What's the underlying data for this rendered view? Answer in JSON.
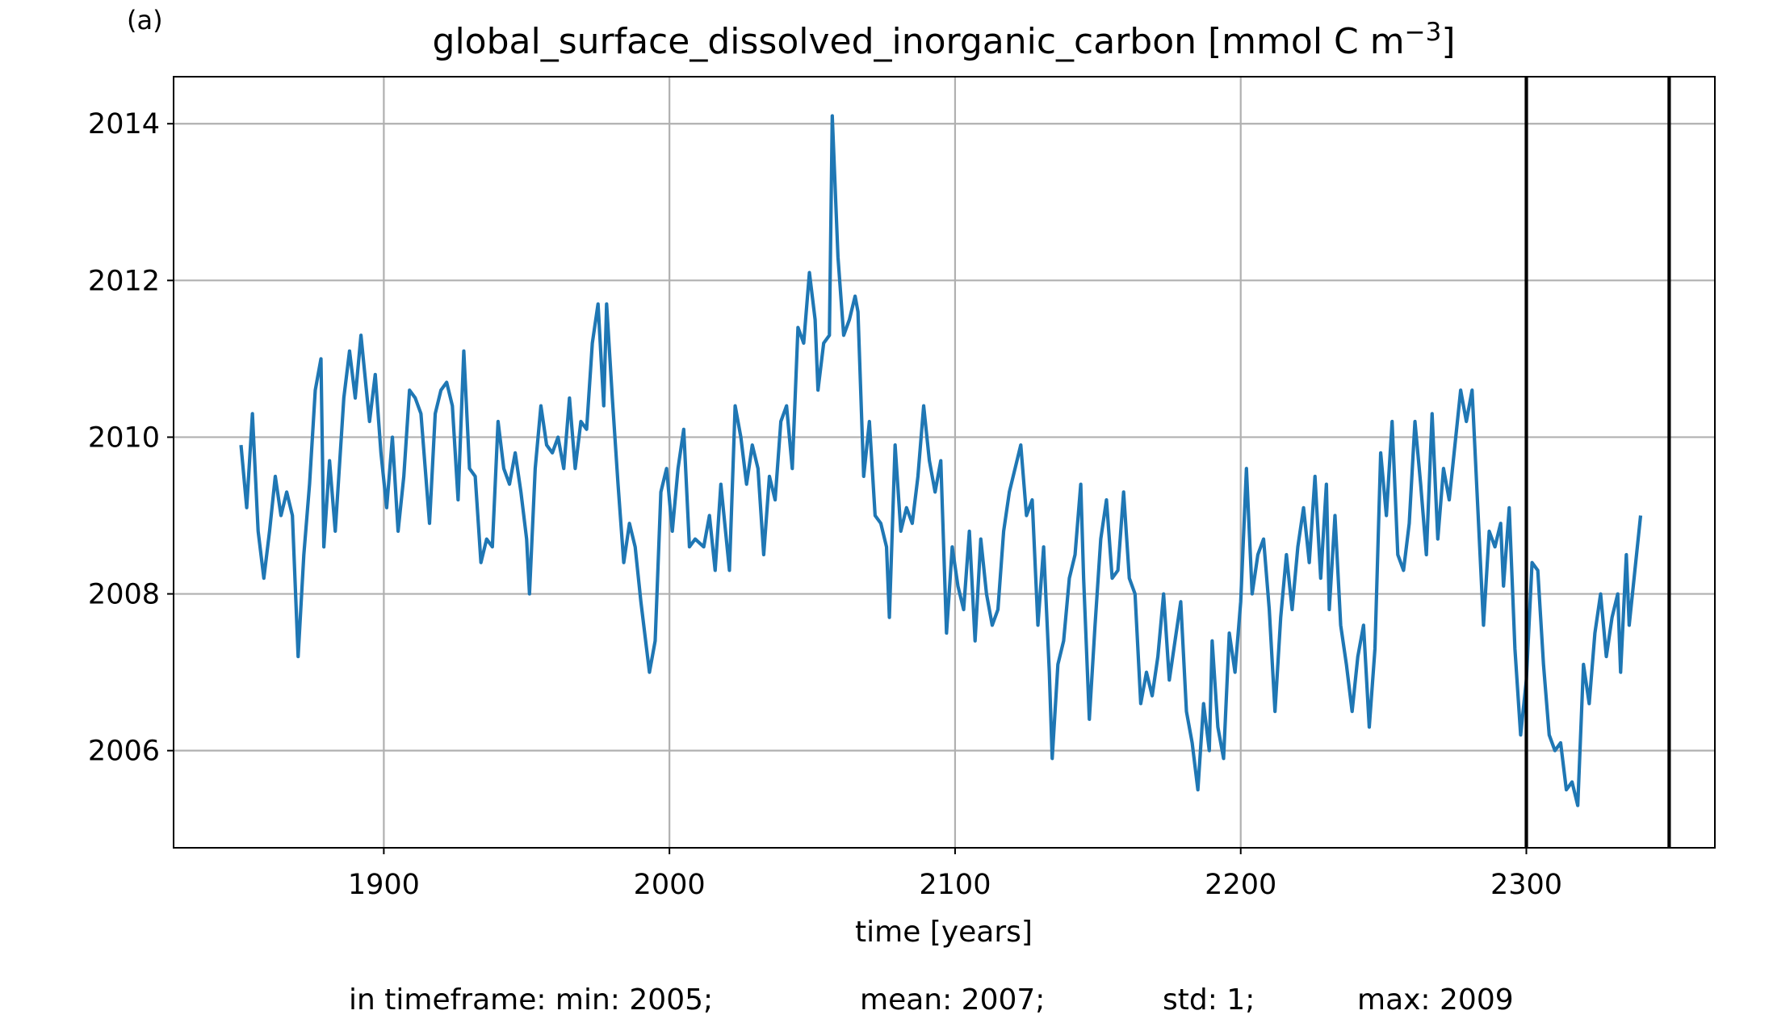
{
  "chart_data": {
    "type": "line",
    "panel_label": "(a)",
    "title": "global_surface_dissolved_inorganic_carbon [mmol C m",
    "title_sup": "−3",
    "title_end": "]",
    "xlabel": "time [years]",
    "stats": [
      "in timeframe: min: 2005;",
      "mean: 2007;",
      "std: 1;",
      "max: 2009"
    ],
    "xlim": [
      1826.4,
      2366
    ],
    "ylim": [
      2004.76,
      2014.6
    ],
    "xticks": [
      1900,
      2000,
      2100,
      2200,
      2300
    ],
    "yticks": [
      2006,
      2008,
      2010,
      2012,
      2014
    ],
    "grid": true,
    "vlines": [
      2300,
      2350
    ],
    "vline_color": "#000000",
    "series": [
      {
        "color": "#1f77b4",
        "x": [
          1850,
          1852,
          1854,
          1856,
          1858,
          1860,
          1862,
          1864,
          1866,
          1868,
          1870,
          1872,
          1874,
          1876,
          1878,
          1879,
          1881,
          1883,
          1886,
          1888,
          1890,
          1892,
          1895,
          1897,
          1899,
          1901,
          1903,
          1905,
          1907,
          1909,
          1911,
          1913,
          1916,
          1918,
          1920,
          1922,
          1924,
          1926,
          1928,
          1930,
          1932,
          1934,
          1936,
          1938,
          1940,
          1942,
          1944,
          1946,
          1948,
          1950,
          1951,
          1953,
          1955,
          1957,
          1959,
          1961,
          1963,
          1965,
          1967,
          1969,
          1971,
          1973,
          1975,
          1977,
          1978,
          1980,
          1982,
          1984,
          1986,
          1988,
          1990,
          1992,
          1993,
          1995,
          1997,
          1999,
          2001,
          2003,
          2005,
          2007,
          2009,
          2012,
          2014,
          2016,
          2018,
          2021,
          2023,
          2025,
          2027,
          2029,
          2031,
          2033,
          2035,
          2037,
          2039,
          2041,
          2043,
          2045,
          2047,
          2049,
          2051,
          2052,
          2054,
          2056,
          2057,
          2059,
          2061,
          2063,
          2065,
          2066,
          2068,
          2070,
          2072,
          2074,
          2076,
          2077,
          2079,
          2081,
          2083,
          2085,
          2087,
          2089,
          2091,
          2093,
          2095,
          2097,
          2099,
          2101,
          2103,
          2105,
          2107,
          2109,
          2111,
          2113,
          2115,
          2117,
          2119,
          2121,
          2123,
          2125,
          2127,
          2129,
          2131,
          2133,
          2134,
          2136,
          2138,
          2140,
          2142,
          2144,
          2145,
          2147,
          2149,
          2151,
          2153,
          2155,
          2157,
          2159,
          2161,
          2163,
          2165,
          2167,
          2169,
          2171,
          2173,
          2175,
          2177,
          2179,
          2181,
          2183,
          2185,
          2187,
          2189,
          2190,
          2192,
          2194,
          2196,
          2198,
          2200,
          2202,
          2204,
          2206,
          2208,
          2210,
          2212,
          2214,
          2216,
          2218,
          2220,
          2222,
          2224,
          2226,
          2228,
          2230,
          2231,
          2233,
          2235,
          2237,
          2239,
          2241,
          2243,
          2245,
          2247,
          2249,
          2251,
          2253,
          2255,
          2257,
          2259,
          2261,
          2263,
          2265,
          2267,
          2269,
          2271,
          2273,
          2275,
          2277,
          2279,
          2281,
          2283,
          2285,
          2287,
          2289,
          2291,
          2292,
          2294,
          2296,
          2298,
          2300,
          2302,
          2304,
          2306,
          2308,
          2310,
          2312,
          2314,
          2316,
          2318,
          2320,
          2322,
          2324,
          2326,
          2328,
          2330,
          2332,
          2333,
          2335,
          2336,
          2338,
          2340
        ],
        "values": [
          2009.9,
          2009.1,
          2010.3,
          2008.8,
          2008.2,
          2008.8,
          2009.5,
          2009.0,
          2009.3,
          2009.0,
          2007.2,
          2008.5,
          2009.4,
          2010.6,
          2011.0,
          2008.6,
          2009.7,
          2008.8,
          2010.5,
          2011.1,
          2010.5,
          2011.3,
          2010.2,
          2010.8,
          2009.8,
          2009.1,
          2010.0,
          2008.8,
          2009.5,
          2010.6,
          2010.5,
          2010.3,
          2008.9,
          2010.3,
          2010.6,
          2010.7,
          2010.4,
          2009.2,
          2011.1,
          2009.6,
          2009.5,
          2008.4,
          2008.7,
          2008.6,
          2010.2,
          2009.6,
          2009.4,
          2009.8,
          2009.3,
          2008.7,
          2008.0,
          2009.6,
          2010.4,
          2009.9,
          2009.8,
          2010.0,
          2009.6,
          2010.5,
          2009.6,
          2010.2,
          2010.1,
          2011.2,
          2011.7,
          2010.4,
          2011.7,
          2010.5,
          2009.4,
          2008.4,
          2008.9,
          2008.6,
          2007.9,
          2007.3,
          2007.0,
          2007.4,
          2009.3,
          2009.6,
          2008.8,
          2009.6,
          2010.1,
          2008.6,
          2008.7,
          2008.6,
          2009.0,
          2008.3,
          2009.4,
          2008.3,
          2010.4,
          2010.0,
          2009.4,
          2009.9,
          2009.6,
          2008.5,
          2009.5,
          2009.2,
          2010.2,
          2010.4,
          2009.6,
          2011.4,
          2011.2,
          2012.1,
          2011.5,
          2010.6,
          2011.2,
          2011.3,
          2014.1,
          2012.3,
          2011.3,
          2011.5,
          2011.8,
          2011.6,
          2009.5,
          2010.2,
          2009.0,
          2008.9,
          2008.6,
          2007.7,
          2009.9,
          2008.8,
          2009.1,
          2008.9,
          2009.5,
          2010.4,
          2009.7,
          2009.3,
          2009.7,
          2007.5,
          2008.6,
          2008.1,
          2007.8,
          2008.8,
          2007.4,
          2008.7,
          2008.0,
          2007.6,
          2007.8,
          2008.8,
          2009.3,
          2009.6,
          2009.9,
          2009.0,
          2009.2,
          2007.6,
          2008.6,
          2007.0,
          2005.9,
          2007.1,
          2007.4,
          2008.2,
          2008.5,
          2009.4,
          2008.2,
          2006.4,
          2007.6,
          2008.7,
          2009.2,
          2008.2,
          2008.3,
          2009.3,
          2008.2,
          2008.0,
          2006.6,
          2007.0,
          2006.7,
          2007.2,
          2008.0,
          2006.9,
          2007.4,
          2007.9,
          2006.5,
          2006.1,
          2005.5,
          2006.6,
          2006.0,
          2007.4,
          2006.3,
          2005.9,
          2007.5,
          2007.0,
          2007.9,
          2009.6,
          2008.0,
          2008.5,
          2008.7,
          2007.8,
          2006.5,
          2007.7,
          2008.5,
          2007.8,
          2008.6,
          2009.1,
          2008.4,
          2009.5,
          2008.2,
          2009.4,
          2007.8,
          2009.0,
          2007.6,
          2007.1,
          2006.5,
          2007.2,
          2007.6,
          2006.3,
          2007.3,
          2009.8,
          2009.0,
          2010.2,
          2008.5,
          2008.3,
          2008.9,
          2010.2,
          2009.4,
          2008.5,
          2010.3,
          2008.7,
          2009.6,
          2009.2,
          2009.9,
          2010.6,
          2010.2,
          2010.6,
          2009.1,
          2007.6,
          2008.8,
          2008.6,
          2008.9,
          2008.1,
          2009.1,
          2007.3,
          2006.2,
          2006.9,
          2008.4,
          2008.3,
          2007.1,
          2006.2,
          2006.0,
          2006.1,
          2005.5,
          2005.6,
          2005.3,
          2007.1,
          2006.6,
          2007.5,
          2008.0,
          2007.2,
          2007.7,
          2008.0,
          2007.0,
          2008.5,
          2007.6,
          2008.3,
          2009.0
        ]
      }
    ]
  }
}
